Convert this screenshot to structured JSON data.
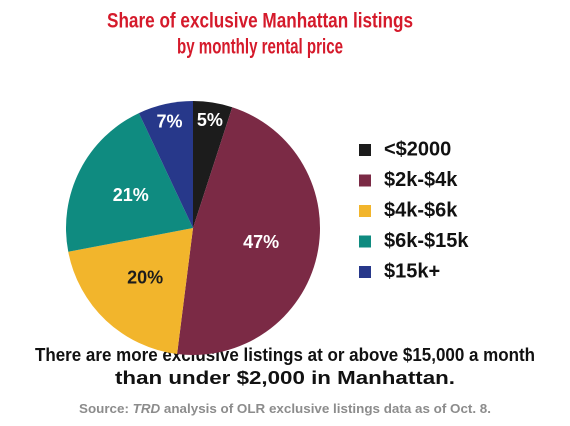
{
  "chart_data": {
    "type": "pie",
    "title": [
      "Share of exclusive Manhattan listings",
      "by monthly rental price"
    ],
    "categories": [
      "<$2000",
      "$2k-$4k",
      "$4k-$6k",
      "$6k-$15k",
      "$15k+"
    ],
    "values": [
      5,
      47,
      20,
      21,
      7
    ],
    "value_labels": [
      "5%",
      "47%",
      "20%",
      "21%",
      "7%"
    ],
    "colors": [
      "#1c1c1c",
      "#7b2a45",
      "#f2b52c",
      "#0f8b80",
      "#27388a"
    ],
    "label_colors": [
      "#ffffff",
      "#ffffff",
      "#1c1c1c",
      "#ffffff",
      "#ffffff"
    ],
    "caption": [
      "There are more exclusive listings at or above $15,000 a month",
      "than under $2,000 in Manhattan."
    ],
    "source": [
      "Source: ",
      "TRD",
      " analysis of OLR exclusive listings data as of Oct. 8."
    ]
  }
}
